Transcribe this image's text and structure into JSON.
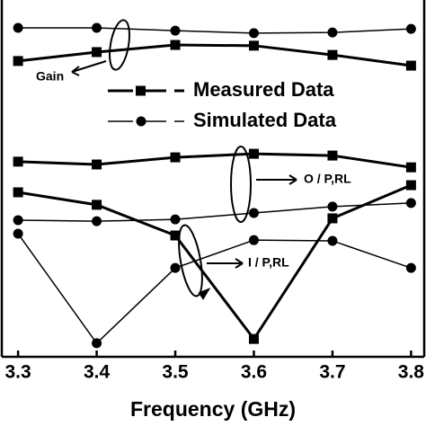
{
  "chart_data": {
    "type": "line",
    "x_label": "Frequency (GHz)",
    "x": [
      3.3,
      3.4,
      3.5,
      3.6,
      3.7,
      3.8
    ],
    "xlim": [
      3.277,
      3.819
    ],
    "xticks": [
      3.3,
      3.4,
      3.5,
      3.6,
      3.7,
      3.8
    ],
    "ylim": [
      0,
      100
    ],
    "annotations": [
      "Gain",
      "O / P,RL",
      "I / P,RL"
    ],
    "series": [
      {
        "name": "Measured Data",
        "marker": "square",
        "color": "#000000",
        "values": [
          82.9,
          85.4,
          87.4,
          87.2,
          84.6,
          81.6
        ]
      },
      {
        "name": "Simulated Data",
        "marker": "circle",
        "color": "#000000",
        "values": [
          92.2,
          92.2,
          91.4,
          90.7,
          90.9,
          91.9
        ]
      },
      {
        "marker": "square",
        "color": "#000000",
        "values": [
          54.7,
          53.9,
          55.9,
          56.9,
          56.4,
          53.1
        ]
      },
      {
        "marker": "circle",
        "color": "#000000",
        "values": [
          38.3,
          38.0,
          38.5,
          40.3,
          42.1,
          43.1
        ]
      },
      {
        "marker": "square",
        "color": "#000000",
        "values": [
          46.1,
          42.6,
          34.0,
          5.0,
          38.8,
          48.1
        ]
      },
      {
        "marker": "circle",
        "color": "#000000",
        "values": [
          34.5,
          3.8,
          24.9,
          32.7,
          32.5,
          24.9
        ]
      }
    ]
  }
}
